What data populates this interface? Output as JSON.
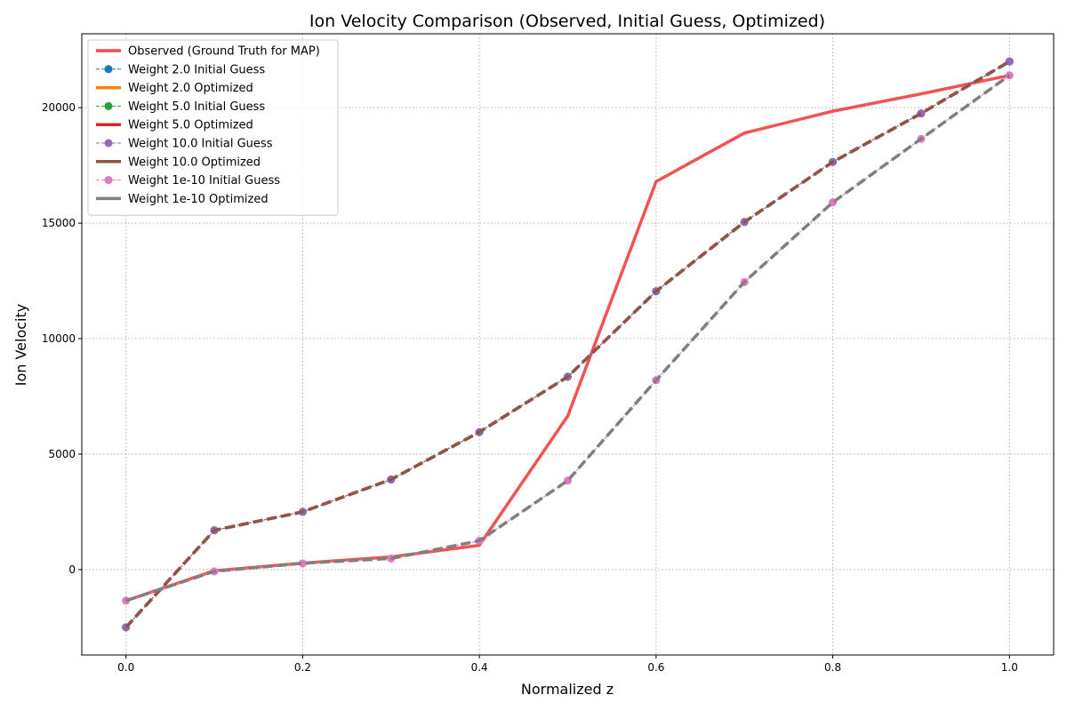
{
  "chart_data": {
    "type": "line",
    "title": "Ion Velocity Comparison (Observed, Initial Guess, Optimized)",
    "xlabel": "Normalized z",
    "ylabel": "Ion Velocity",
    "xlim": [
      -0.05,
      1.05
    ],
    "ylim": [
      -3700,
      23200
    ],
    "grid": true,
    "grid_style": "dotted",
    "legend_position": "top-left",
    "xticks": [
      0.0,
      0.2,
      0.4,
      0.6,
      0.8,
      1.0
    ],
    "xtick_labels": [
      "0.0",
      "0.2",
      "0.4",
      "0.6",
      "0.8",
      "1.0"
    ],
    "yticks": [
      0,
      5000,
      10000,
      15000,
      20000
    ],
    "ytick_labels": [
      "0",
      "5000",
      "10000",
      "15000",
      "20000"
    ],
    "x": [
      0.0,
      0.1,
      0.2,
      0.3,
      0.4,
      0.5,
      0.6,
      0.7,
      0.8,
      0.9,
      1.0
    ],
    "series": [
      {
        "name": "Observed (Ground Truth for MAP)",
        "color": "#f04a4a",
        "style": "solid-thick",
        "marker": false,
        "values": [
          -1350,
          -50,
          280,
          550,
          1050,
          6650,
          16800,
          18900,
          19850,
          20600,
          21400
        ]
      },
      {
        "name": "Weight 2.0 Initial Guess",
        "color": "#1f77b4",
        "style": "dashed-marker",
        "marker": true,
        "values": [
          -2500,
          1700,
          2500,
          3900,
          5950,
          8350,
          12050,
          15050,
          17650,
          19750,
          22000
        ]
      },
      {
        "name": "Weight 2.0 Optimized",
        "color": "#ff7f0e",
        "style": "dashed-thick",
        "marker": false,
        "values": [
          -2500,
          1700,
          2500,
          3900,
          5950,
          8350,
          12050,
          15050,
          17650,
          19750,
          22000
        ]
      },
      {
        "name": "Weight 5.0 Initial Guess",
        "color": "#2ca02c",
        "style": "dashed-marker",
        "marker": true,
        "values": [
          -2500,
          1700,
          2500,
          3900,
          5950,
          8350,
          12050,
          15050,
          17650,
          19750,
          22000
        ]
      },
      {
        "name": "Weight 5.0 Optimized",
        "color": "#d62728",
        "style": "dashed-thick",
        "marker": false,
        "values": [
          -2500,
          1700,
          2500,
          3900,
          5950,
          8350,
          12050,
          15050,
          17650,
          19750,
          22000
        ]
      },
      {
        "name": "Weight 10.0 Initial Guess",
        "color": "#9467bd",
        "style": "dashed-marker",
        "marker": true,
        "values": [
          -2500,
          1700,
          2500,
          3900,
          5950,
          8350,
          12050,
          15050,
          17650,
          19750,
          22000
        ]
      },
      {
        "name": "Weight 10.0 Optimized",
        "color": "#8c564b",
        "style": "dashed-thick",
        "marker": false,
        "values": [
          -2500,
          1700,
          2500,
          3900,
          5950,
          8350,
          12050,
          15050,
          17650,
          19750,
          22000
        ]
      },
      {
        "name": "Weight 1e-10 Initial Guess",
        "color": "#e377c2",
        "style": "dashed-marker",
        "marker": true,
        "values": [
          -1350,
          -80,
          270,
          480,
          1250,
          3850,
          8200,
          12450,
          15900,
          18650,
          21400
        ]
      },
      {
        "name": "Weight 1e-10 Optimized",
        "color": "#7f7f7f",
        "style": "dashed-thick",
        "marker": false,
        "values": [
          -1350,
          -80,
          270,
          480,
          1250,
          3850,
          8200,
          12450,
          15900,
          18650,
          21400
        ]
      }
    ]
  }
}
